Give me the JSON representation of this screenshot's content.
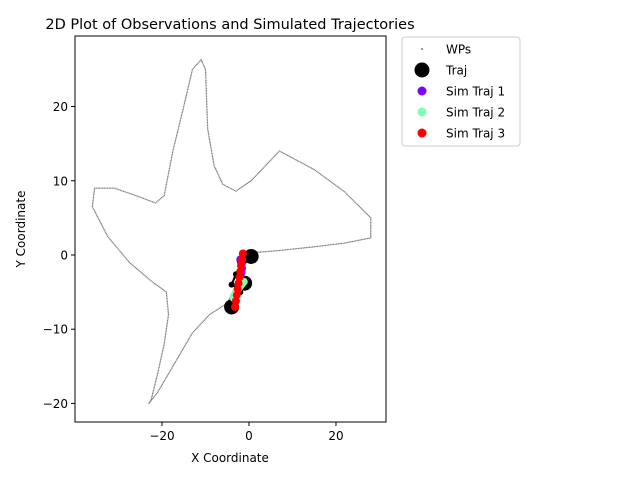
{
  "chart_data": {
    "type": "scatter",
    "title": "2D Plot of Observations and Simulated Trajectories",
    "xlabel": "X Coordinate",
    "ylabel": "Y Coordinate",
    "xlim": [
      -40,
      31.5
    ],
    "ylim": [
      -22.5,
      29.5
    ],
    "x_ticks": [
      -20,
      0,
      20
    ],
    "y_ticks": [
      -20,
      -10,
      0,
      10,
      20
    ],
    "grid": false,
    "legend_position": "outside-right-top",
    "series": [
      {
        "name": "WPs",
        "kind": "waypoint-outline",
        "color": "#808080",
        "x": [
          0.5,
          7,
          15,
          22,
          28,
          28,
          22,
          15,
          7,
          0.5,
          -3,
          -6,
          -8,
          -9.5,
          -10,
          -11,
          -13,
          -15,
          -17.5,
          -19.5,
          -21.5,
          -26,
          -31,
          -35.5,
          -36,
          -32.5,
          -27.5,
          -22.5,
          -19,
          -18.5,
          -19.5,
          -21,
          -22.5,
          -23,
          -21,
          -17,
          -13,
          -9,
          -5,
          -3,
          -2,
          -1,
          0.5
        ],
        "y": [
          0.3,
          0.6,
          1.1,
          1.6,
          2.3,
          5,
          8.5,
          11.5,
          14,
          10,
          8.6,
          9.5,
          12,
          17,
          25,
          26.3,
          25,
          20,
          14,
          8,
          7,
          8,
          9,
          9,
          6.5,
          2.5,
          -1,
          -3.5,
          -5,
          -8,
          -12,
          -16,
          -19.5,
          -20,
          -18.5,
          -14.5,
          -10.5,
          -8,
          -6.5,
          -4,
          -2,
          -0.5,
          0.3
        ]
      },
      {
        "name": "Traj",
        "kind": "observed",
        "color": "#000000",
        "x": [
          0.5,
          -1,
          -2,
          -3,
          -4,
          -2.5,
          -1,
          -2,
          -3,
          -4
        ],
        "y": [
          -0.2,
          -0.8,
          -1.5,
          -2.6,
          -4,
          -4.5,
          -3.8,
          -5,
          -6,
          -7
        ]
      },
      {
        "name": "Sim Traj 1",
        "kind": "simulated",
        "color": "#8000ff",
        "x": [
          -2,
          -1.9,
          -1.7,
          -1.6,
          -1.7,
          -1.9,
          -2.1
        ],
        "y": [
          -0.6,
          -0.9,
          -1.3,
          -1.8,
          -2.3,
          -2.7,
          -3.1
        ]
      },
      {
        "name": "Sim Traj 2",
        "kind": "simulated",
        "color": "#80ffb4",
        "x": [
          -1.2,
          -1.6,
          -2.0,
          -2.4,
          -2.8,
          -3.2,
          -3.5
        ],
        "y": [
          -3.6,
          -3.9,
          -4.2,
          -4.5,
          -4.8,
          -5.3,
          -5.8
        ]
      },
      {
        "name": "Sim Traj 3",
        "kind": "simulated",
        "color": "#ff0000",
        "x": [
          -1.4,
          -1.6,
          -1.8,
          -2.0,
          -2.2,
          -2.4,
          -2.6,
          -2.8,
          -3.0,
          -3.2
        ],
        "y": [
          0.2,
          -0.6,
          -1.4,
          -2.2,
          -3.0,
          -3.8,
          -4.6,
          -5.4,
          -6.2,
          -7.0
        ]
      }
    ]
  }
}
